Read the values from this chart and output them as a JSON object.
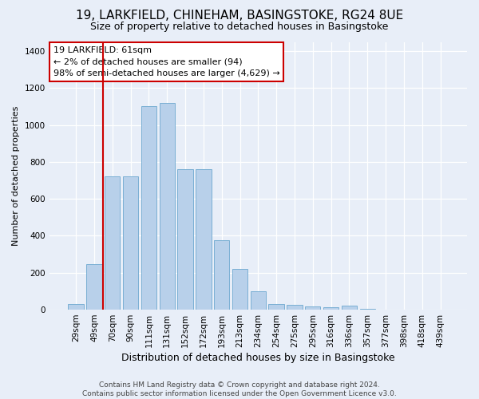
{
  "title_line1": "19, LARKFIELD, CHINEHAM, BASINGSTOKE, RG24 8UE",
  "title_line2": "Size of property relative to detached houses in Basingstoke",
  "xlabel": "Distribution of detached houses by size in Basingstoke",
  "ylabel": "Number of detached properties",
  "categories": [
    "29sqm",
    "49sqm",
    "70sqm",
    "90sqm",
    "111sqm",
    "131sqm",
    "152sqm",
    "172sqm",
    "193sqm",
    "213sqm",
    "234sqm",
    "254sqm",
    "275sqm",
    "295sqm",
    "316sqm",
    "336sqm",
    "357sqm",
    "377sqm",
    "398sqm",
    "418sqm",
    "439sqm"
  ],
  "values": [
    30,
    245,
    720,
    720,
    1100,
    1120,
    760,
    760,
    375,
    220,
    100,
    30,
    25,
    18,
    15,
    20,
    5,
    0,
    0,
    0,
    0
  ],
  "bar_color": "#b8d0ea",
  "bar_edge_color": "#7aafd4",
  "vline_color": "#cc0000",
  "vline_x": 1.5,
  "annotation_text": "19 LARKFIELD: 61sqm\n← 2% of detached houses are smaller (94)\n98% of semi-detached houses are larger (4,629) →",
  "annotation_box_color": "#ffffff",
  "annotation_box_edge": "#cc0000",
  "ylim": [
    0,
    1450
  ],
  "yticks": [
    0,
    200,
    400,
    600,
    800,
    1000,
    1200,
    1400
  ],
  "footnote": "Contains HM Land Registry data © Crown copyright and database right 2024.\nContains public sector information licensed under the Open Government Licence v3.0.",
  "bg_color": "#e8eef8",
  "plot_bg_color": "#e8eef8",
  "title1_fontsize": 11,
  "title2_fontsize": 9,
  "ylabel_fontsize": 8,
  "xlabel_fontsize": 9,
  "tick_fontsize": 7.5,
  "annot_fontsize": 8
}
